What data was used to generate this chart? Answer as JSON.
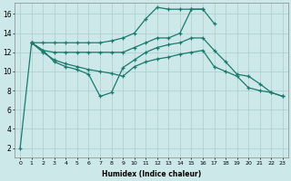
{
  "xlabel": "Humidex (Indice chaleur)",
  "background_color": "#cce8e8",
  "grid_color": "#aacece",
  "line_color": "#1a7a6e",
  "xlim": [
    -0.5,
    23.5
  ],
  "ylim": [
    1,
    17.2
  ],
  "yticks": [
    2,
    4,
    6,
    8,
    10,
    12,
    14,
    16
  ],
  "xticks": [
    0,
    1,
    2,
    3,
    4,
    5,
    6,
    7,
    8,
    9,
    10,
    11,
    12,
    13,
    14,
    15,
    16,
    17,
    18,
    19,
    20,
    21,
    22,
    23
  ],
  "line1_x": [
    1,
    2,
    3,
    4,
    5,
    6,
    7,
    8,
    9,
    10,
    11,
    12,
    13,
    14,
    15,
    16
  ],
  "line1_y": [
    13.0,
    13.0,
    13.0,
    13.0,
    13.0,
    13.0,
    13.0,
    13.2,
    13.5,
    14.0,
    15.5,
    16.7,
    16.5,
    16.5,
    16.5,
    16.5
  ],
  "line2_x": [
    1,
    2,
    3,
    4,
    5,
    6,
    7,
    8,
    9,
    10,
    11,
    12,
    13,
    14,
    15,
    16,
    17
  ],
  "line2_y": [
    13.0,
    12.2,
    12.0,
    12.0,
    12.0,
    12.0,
    12.0,
    12.0,
    12.0,
    12.5,
    13.0,
    13.5,
    13.5,
    14.0,
    16.5,
    16.5,
    15.0
  ],
  "line3_x": [
    1,
    2,
    3,
    4,
    5,
    6,
    7,
    8,
    9,
    10,
    11,
    12,
    13,
    14,
    15,
    16,
    17,
    18,
    19,
    20,
    21,
    22,
    23
  ],
  "line3_y": [
    13.0,
    12.2,
    11.0,
    10.5,
    10.2,
    9.7,
    7.4,
    7.8,
    10.4,
    11.2,
    12.0,
    12.5,
    12.8,
    13.0,
    13.5,
    13.5,
    12.2,
    11.0,
    9.7,
    9.5,
    8.7,
    7.8,
    7.4
  ],
  "line4_x": [
    0,
    1,
    2,
    3,
    4,
    5,
    6,
    7,
    8,
    9,
    10,
    11,
    12,
    13,
    14,
    15,
    16,
    17,
    18,
    19,
    20,
    21,
    22,
    23
  ],
  "line4_y": [
    2.0,
    13.0,
    12.0,
    11.2,
    10.8,
    10.5,
    10.2,
    10.0,
    9.8,
    9.5,
    10.5,
    11.0,
    11.3,
    11.5,
    11.8,
    12.0,
    12.2,
    10.5,
    10.0,
    9.5,
    8.3,
    8.0,
    7.8,
    7.4
  ]
}
